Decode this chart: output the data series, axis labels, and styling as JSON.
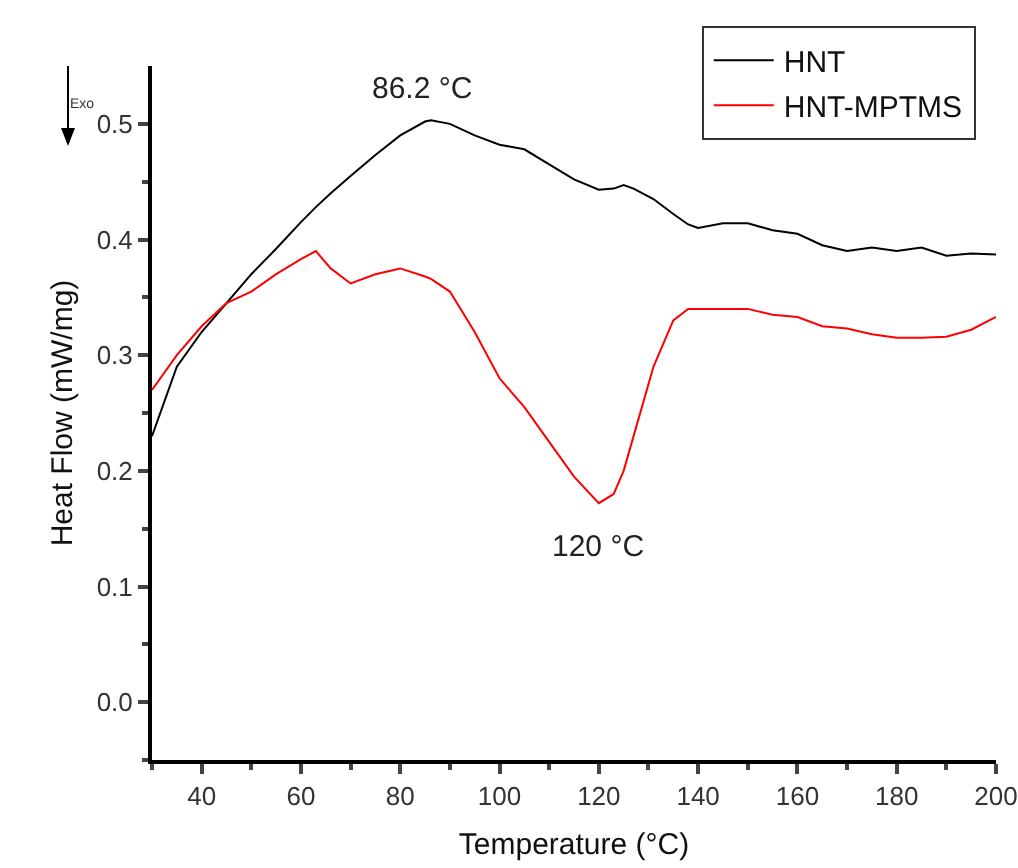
{
  "chart_data": {
    "type": "line",
    "xlabel": "Temperature (°C)",
    "ylabel": "Heat Flow (mW/mg)",
    "x": [
      30,
      35,
      40,
      45,
      50,
      55,
      60,
      63,
      66,
      70,
      75,
      80,
      85,
      86.2,
      90,
      95,
      100,
      105,
      110,
      115,
      120,
      123,
      125,
      127,
      131,
      135,
      138,
      140,
      145,
      150,
      155,
      160,
      165,
      170,
      175,
      180,
      185,
      190,
      195,
      200
    ],
    "series": [
      {
        "name": "HNT",
        "color": "#000000",
        "values": [
          0.23,
          0.29,
          0.32,
          0.345,
          0.37,
          0.392,
          0.415,
          0.428,
          0.44,
          0.455,
          0.473,
          0.49,
          0.502,
          0.503,
          0.5,
          0.49,
          0.482,
          0.478,
          0.465,
          0.452,
          0.443,
          0.444,
          0.447,
          0.444,
          0.435,
          0.422,
          0.413,
          0.41,
          0.414,
          0.414,
          0.408,
          0.405,
          0.395,
          0.39,
          0.393,
          0.39,
          0.393,
          0.386,
          0.388,
          0.387
        ]
      },
      {
        "name": "HNT-MPTMS",
        "color": "#ff0000",
        "values": [
          0.27,
          0.3,
          0.325,
          0.345,
          0.355,
          0.37,
          0.383,
          0.39,
          0.375,
          0.362,
          0.37,
          0.375,
          0.368,
          0.366,
          0.355,
          0.32,
          0.28,
          0.255,
          0.225,
          0.195,
          0.172,
          0.18,
          0.2,
          0.23,
          0.29,
          0.33,
          0.34,
          0.34,
          0.34,
          0.34,
          0.335,
          0.333,
          0.325,
          0.323,
          0.318,
          0.315,
          0.315,
          0.316,
          0.322,
          0.333
        ]
      }
    ],
    "xlim": [
      30,
      200
    ],
    "xticks": [
      40,
      60,
      80,
      100,
      120,
      140,
      160,
      180,
      200
    ],
    "ylim": [
      -0.05,
      0.55
    ],
    "yticks": [
      {
        "value": 0,
        "label": "0.0"
      },
      0.1,
      0.2,
      0.3,
      0.4,
      0.5
    ],
    "annotations": [
      {
        "text": "86.2 °C",
        "x": 86.2,
        "y": 0.503
      },
      {
        "text": "120 °C",
        "x": 120,
        "y": 0.172
      },
      "Exo"
    ],
    "legend": "top right",
    "grid": false,
    "marker": "none",
    "line_style": "solid"
  }
}
